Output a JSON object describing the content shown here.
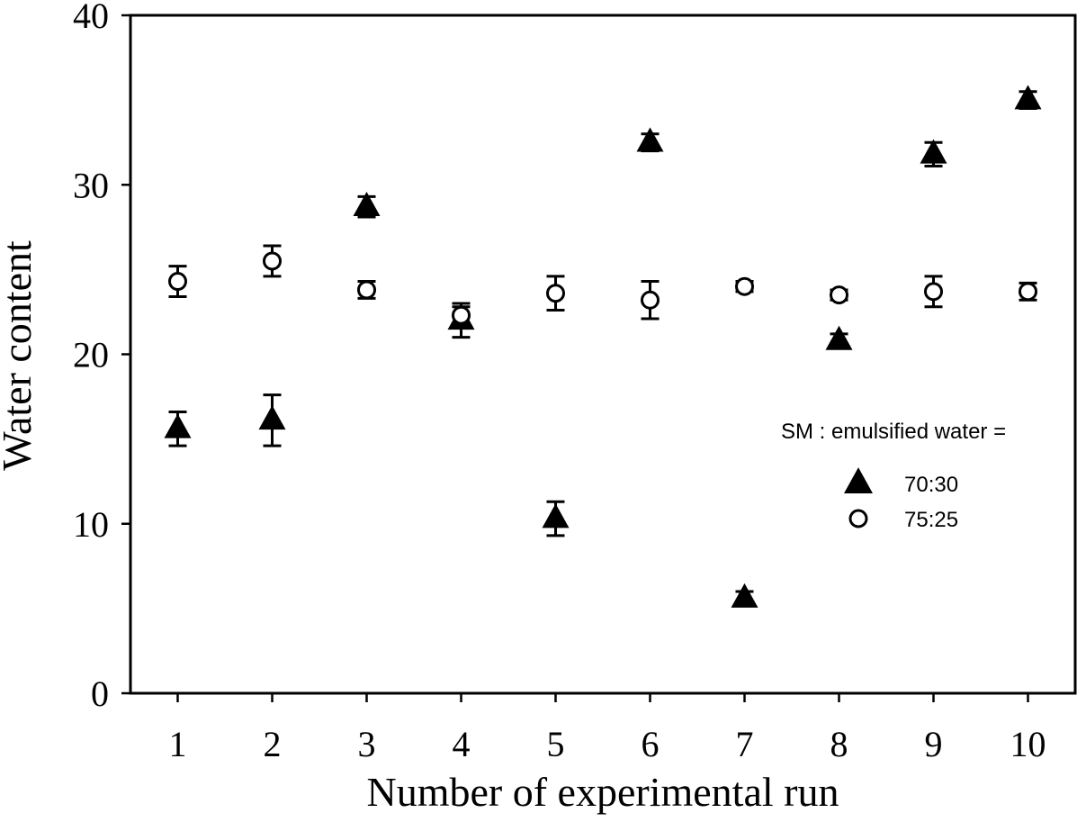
{
  "chart_data": {
    "type": "scatter",
    "xlabel": "Number of experimental run",
    "ylabel": "Water content",
    "x": [
      1,
      2,
      3,
      4,
      5,
      6,
      7,
      8,
      9,
      10
    ],
    "xlim": [
      0.5,
      10.5
    ],
    "ylim": [
      0,
      40
    ],
    "xticks": [
      "1",
      "2",
      "3",
      "4",
      "5",
      "6",
      "7",
      "8",
      "9",
      "10"
    ],
    "yticks": [
      "0",
      "10",
      "20",
      "30",
      "40"
    ],
    "grid": false,
    "legend": {
      "title": "SM : emulsified water =",
      "position": "right",
      "entries": [
        "70:30",
        "75:25"
      ]
    },
    "series": [
      {
        "name": "70:30",
        "marker": "filled-triangle",
        "color": "#000000",
        "values": [
          15.6,
          16.1,
          28.7,
          22.0,
          10.3,
          32.5,
          5.6,
          20.8,
          31.8,
          35.0
        ],
        "errors": [
          1.0,
          1.5,
          0.6,
          1.0,
          1.0,
          0.5,
          0.4,
          0.4,
          0.7,
          0.5
        ]
      },
      {
        "name": "75:25",
        "marker": "open-circle",
        "color": "#000000",
        "values": [
          24.3,
          25.5,
          23.8,
          22.3,
          23.6,
          23.2,
          24.0,
          23.5,
          23.7,
          23.7
        ],
        "errors": [
          0.9,
          0.9,
          0.5,
          0.5,
          1.0,
          1.1,
          0.3,
          0.3,
          0.9,
          0.5
        ]
      }
    ]
  }
}
